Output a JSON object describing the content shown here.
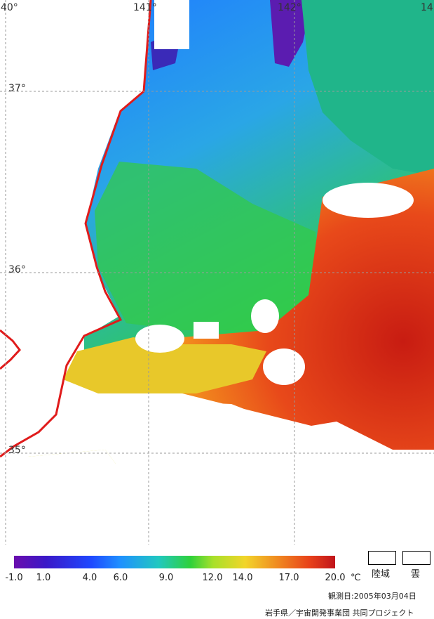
{
  "map": {
    "lon_labels": [
      "140°",
      "141°",
      "142°",
      "14"
    ],
    "lat_labels": [
      "37°",
      "36°",
      "35°"
    ],
    "land_color": "#ffffff",
    "coast_color": "#e01b1b",
    "grid_color": "#9a9a9a"
  },
  "colorbar": {
    "ticks": [
      "-1.0",
      "1.0",
      "4.0",
      "6.0",
      "9.0",
      "12.0",
      "14.0",
      "17.0",
      "20.0"
    ],
    "unit": "℃",
    "min": -1.0,
    "max": 20.0
  },
  "legend": {
    "land_label": "陸域",
    "cloud_label": "雲"
  },
  "footer": {
    "observation": "観測日:2005年03月04日",
    "credit": "岩手県／宇宙開発事業団 共同プロジェクト"
  }
}
